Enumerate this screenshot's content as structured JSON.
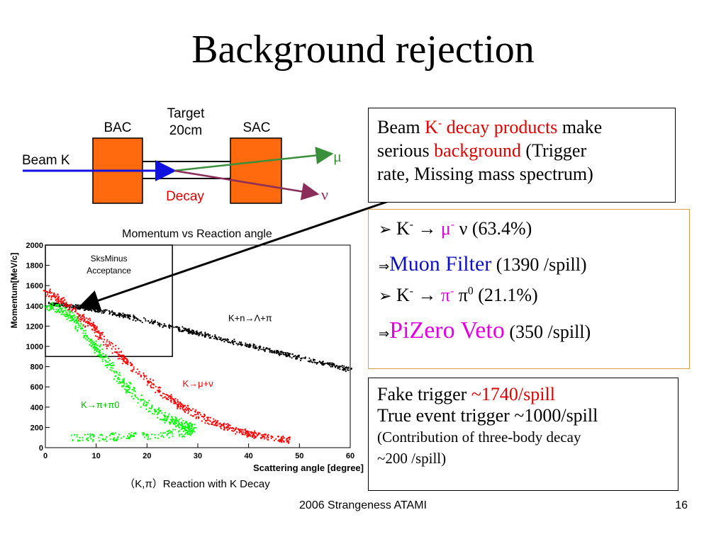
{
  "slide": {
    "title": "Background rejection",
    "footer": "2006 Strangeness ATAMI",
    "page_number": "16"
  },
  "diagram": {
    "target_label_1": "Target",
    "target_label_2": "20cm",
    "bac_label": "BAC",
    "sac_label": "SAC",
    "beam_label": "Beam K",
    "decay_label": "Decay",
    "mu_label": "μ",
    "nu_label": "ν",
    "colors": {
      "counter": "#ff6a0f",
      "beam": "#1010e0",
      "mu": "#3a8f3a",
      "nu": "#8b2e5a",
      "decay_text": "#e00000"
    }
  },
  "box_beam": {
    "t1": "Beam ",
    "t2": "K",
    "t2_sup": "-",
    "t3": " decay products",
    "t4": " make",
    "t5": "serious ",
    "t6": "background",
    "t7": " (Trigger",
    "t8": "rate, Missing mass spectrum)"
  },
  "box_modes": {
    "bullet": "➢",
    "mode1_k": "K",
    "mode1_ksup": "-",
    "arrow": " → ",
    "mode1_p1": "μ",
    "mode1_p1sup": "-",
    "mode1_p2": " ν",
    "mode1_br": " (63.4%)",
    "implies": "⇒",
    "filter1_name": "Muon Filter",
    "filter1_rate": " (1390 /spill)",
    "mode2_k": "K",
    "mode2_ksup": "-",
    "mode2_p1": "π",
    "mode2_p1sup": "-",
    "mode2_p2": " π",
    "mode2_p2sup": "0",
    "mode2_br": " (21.1%)",
    "filter2_name": "PiZero Veto",
    "filter2_rate": " (350 /spill)"
  },
  "box_trigger": {
    "line1_a": "Fake trigger ",
    "line1_b": "~1740/spill",
    "line2": "True event trigger ~1000/spill",
    "line3": "(Contribution of three-body decay",
    "line4": "~200 /spill)"
  },
  "chart_data": {
    "type": "scatter",
    "title": "Momentum vs Reaction angle",
    "subtitle": "（K,π）Reaction with K Decay",
    "xlabel": "Scattering angle [degree]",
    "ylabel": "Momentum[MeV/c]",
    "xlim": [
      0,
      60
    ],
    "ylim": [
      0,
      2000
    ],
    "x_ticks": [
      "0",
      "10",
      "20",
      "30",
      "40",
      "50",
      "60"
    ],
    "y_ticks": [
      "0",
      "200",
      "400",
      "600",
      "800",
      "1000",
      "1200",
      "1400",
      "1600",
      "1800",
      "2000"
    ],
    "acceptance_box": {
      "label_1": "SksMinus",
      "label_2": "Acceptance",
      "x_range": [
        0,
        25
      ],
      "y_range": [
        900,
        2000
      ]
    },
    "series": [
      {
        "name": "K+n→Λ+π",
        "color": "#000000",
        "x": [
          1,
          5,
          10,
          15,
          20,
          25,
          30,
          35,
          40,
          45,
          50,
          55,
          60
        ],
        "y": [
          1420,
          1400,
          1360,
          1310,
          1250,
          1190,
          1130,
          1070,
          1010,
          950,
          890,
          830,
          770
        ]
      },
      {
        "name": "K→μ+ν",
        "color": "#ff0000",
        "x": [
          0,
          4,
          8,
          12,
          16,
          20,
          24,
          28,
          32,
          36,
          40,
          44,
          48
        ],
        "y": [
          1550,
          1420,
          1250,
          1050,
          850,
          660,
          500,
          370,
          270,
          195,
          140,
          100,
          70
        ]
      },
      {
        "name": "K→π+π0",
        "color": "#00ff00",
        "x": [
          0,
          3,
          6,
          9,
          12,
          15,
          18,
          21,
          24,
          27,
          29,
          28,
          20,
          10,
          5
        ],
        "y": [
          1400,
          1370,
          1250,
          1050,
          850,
          660,
          500,
          380,
          290,
          230,
          200,
          150,
          120,
          100,
          95
        ]
      }
    ]
  }
}
